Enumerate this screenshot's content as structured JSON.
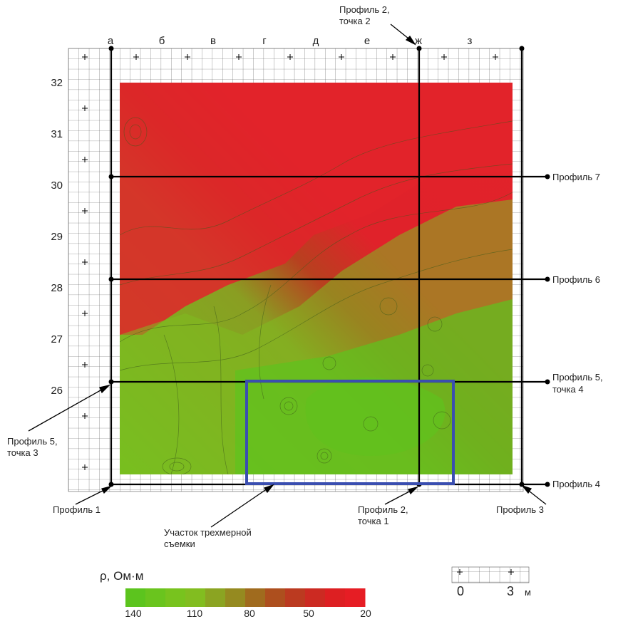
{
  "columns": [
    "а",
    "б",
    "в",
    "г",
    "д",
    "е",
    "ж",
    "з"
  ],
  "rows": [
    "32",
    "31",
    "30",
    "29",
    "28",
    "27",
    "26"
  ],
  "profiles": {
    "p1": "Профиль 1",
    "p2_top": [
      "Профиль 2,",
      "точка 2"
    ],
    "p2_bottom": [
      "Профиль 2,",
      "точка 1"
    ],
    "p3": "Профиль 3",
    "p4": "Профиль 4",
    "p5_right": [
      "Профиль 5,",
      "точка 4"
    ],
    "p5_left": [
      "Профиль 5,",
      "точка 3"
    ],
    "p6": "Профиль 6",
    "p7": "Профиль 7"
  },
  "survey_area": [
    "Участок трехмерной",
    "съемки"
  ],
  "legend": {
    "title": "ρ, Ом·м",
    "ticks": [
      "140",
      "110",
      "80",
      "50",
      "20"
    ],
    "colors": [
      "#5cc41e",
      "#6ac41e",
      "#78c31e",
      "#82bd20",
      "#8ba422",
      "#958a20",
      "#a06b1e",
      "#ad4f1e",
      "#bb3a20",
      "#cc2a22",
      "#dd1f22",
      "#e61d24"
    ]
  },
  "scale_bar": {
    "start": "0",
    "end": "3",
    "unit": "м"
  },
  "colors": {
    "high": "#e2232a",
    "low": "#5ec31e",
    "survey_box": "#3a4eb0"
  }
}
